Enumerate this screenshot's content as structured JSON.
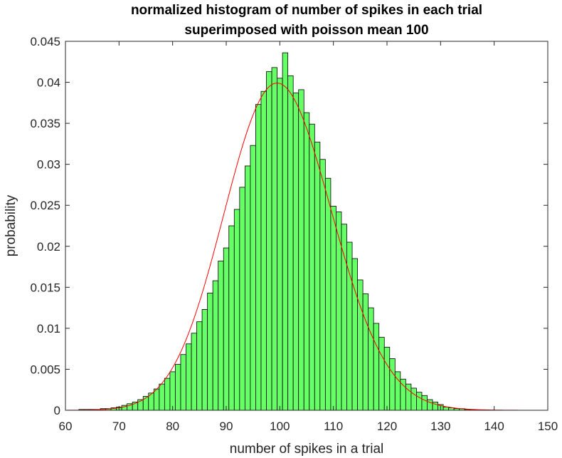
{
  "chart_data": {
    "type": "bar",
    "title": [
      "normalized histogram of number of spikes in each trial",
      "superimposed with poisson mean 100"
    ],
    "xlabel": "number of spikes in a trial",
    "ylabel": "probability",
    "xlim": [
      60,
      150
    ],
    "ylim": [
      0,
      0.045
    ],
    "xticks": [
      "60",
      "70",
      "80",
      "90",
      "100",
      "110",
      "120",
      "130",
      "140",
      "150"
    ],
    "yticks": [
      "0",
      "0.005",
      "0.01",
      "0.015",
      "0.02",
      "0.025",
      "0.03",
      "0.035",
      "0.04",
      "0.045"
    ],
    "grid": false,
    "legend": "none",
    "bar_color": "#66ff66",
    "bar_edge_color": "#000000",
    "curve_color": "#ff0000",
    "histogram": {
      "bin_width": 1,
      "bins": [
        {
          "x": 63,
          "y": 0.0001
        },
        {
          "x": 64,
          "y": 0.0001
        },
        {
          "x": 65,
          "y": 0.0001
        },
        {
          "x": 66,
          "y": 0.0001
        },
        {
          "x": 67,
          "y": 0.0002
        },
        {
          "x": 68,
          "y": 0.0002
        },
        {
          "x": 69,
          "y": 0.0003
        },
        {
          "x": 70,
          "y": 0.0004
        },
        {
          "x": 71,
          "y": 0.0006
        },
        {
          "x": 72,
          "y": 0.0008
        },
        {
          "x": 73,
          "y": 0.001
        },
        {
          "x": 74,
          "y": 0.0013
        },
        {
          "x": 75,
          "y": 0.0017
        },
        {
          "x": 76,
          "y": 0.0021
        },
        {
          "x": 77,
          "y": 0.0026
        },
        {
          "x": 78,
          "y": 0.0032
        },
        {
          "x": 79,
          "y": 0.0039
        },
        {
          "x": 80,
          "y": 0.0047
        },
        {
          "x": 81,
          "y": 0.0056
        },
        {
          "x": 82,
          "y": 0.0068
        },
        {
          "x": 83,
          "y": 0.0081
        },
        {
          "x": 84,
          "y": 0.0094
        },
        {
          "x": 85,
          "y": 0.0108
        },
        {
          "x": 86,
          "y": 0.0123
        },
        {
          "x": 87,
          "y": 0.0143
        },
        {
          "x": 88,
          "y": 0.0158
        },
        {
          "x": 89,
          "y": 0.0182
        },
        {
          "x": 90,
          "y": 0.0198
        },
        {
          "x": 91,
          "y": 0.0225
        },
        {
          "x": 92,
          "y": 0.0245
        },
        {
          "x": 93,
          "y": 0.0272
        },
        {
          "x": 94,
          "y": 0.0298
        },
        {
          "x": 95,
          "y": 0.0323
        },
        {
          "x": 96,
          "y": 0.0373
        },
        {
          "x": 97,
          "y": 0.0389
        },
        {
          "x": 98,
          "y": 0.0413
        },
        {
          "x": 99,
          "y": 0.0418
        },
        {
          "x": 100,
          "y": 0.0405
        },
        {
          "x": 101,
          "y": 0.0436
        },
        {
          "x": 102,
          "y": 0.0408
        },
        {
          "x": 103,
          "y": 0.0387
        },
        {
          "x": 104,
          "y": 0.0391
        },
        {
          "x": 105,
          "y": 0.0363
        },
        {
          "x": 106,
          "y": 0.0349
        },
        {
          "x": 107,
          "y": 0.0327
        },
        {
          "x": 108,
          "y": 0.0306
        },
        {
          "x": 109,
          "y": 0.0283
        },
        {
          "x": 110,
          "y": 0.0249
        },
        {
          "x": 111,
          "y": 0.0242
        },
        {
          "x": 112,
          "y": 0.0227
        },
        {
          "x": 113,
          "y": 0.0205
        },
        {
          "x": 114,
          "y": 0.0185
        },
        {
          "x": 115,
          "y": 0.0159
        },
        {
          "x": 116,
          "y": 0.0142
        },
        {
          "x": 117,
          "y": 0.0125
        },
        {
          "x": 118,
          "y": 0.0106
        },
        {
          "x": 119,
          "y": 0.0089
        },
        {
          "x": 120,
          "y": 0.0077
        },
        {
          "x": 121,
          "y": 0.0063
        },
        {
          "x": 122,
          "y": 0.0047
        },
        {
          "x": 123,
          "y": 0.0038
        },
        {
          "x": 124,
          "y": 0.0032
        },
        {
          "x": 125,
          "y": 0.0027
        },
        {
          "x": 126,
          "y": 0.0022
        },
        {
          "x": 127,
          "y": 0.0018
        },
        {
          "x": 128,
          "y": 0.0013
        },
        {
          "x": 129,
          "y": 0.001
        },
        {
          "x": 130,
          "y": 0.0007
        },
        {
          "x": 131,
          "y": 0.0004
        },
        {
          "x": 132,
          "y": 0.0003
        },
        {
          "x": 133,
          "y": 0.0002
        },
        {
          "x": 134,
          "y": 0.0002
        },
        {
          "x": 135,
          "y": 0.0001
        },
        {
          "x": 136,
          "y": 0.0001
        }
      ]
    },
    "curve": {
      "type": "line",
      "distribution": "poisson",
      "mean": 100,
      "x_range": [
        60,
        150
      ]
    }
  }
}
